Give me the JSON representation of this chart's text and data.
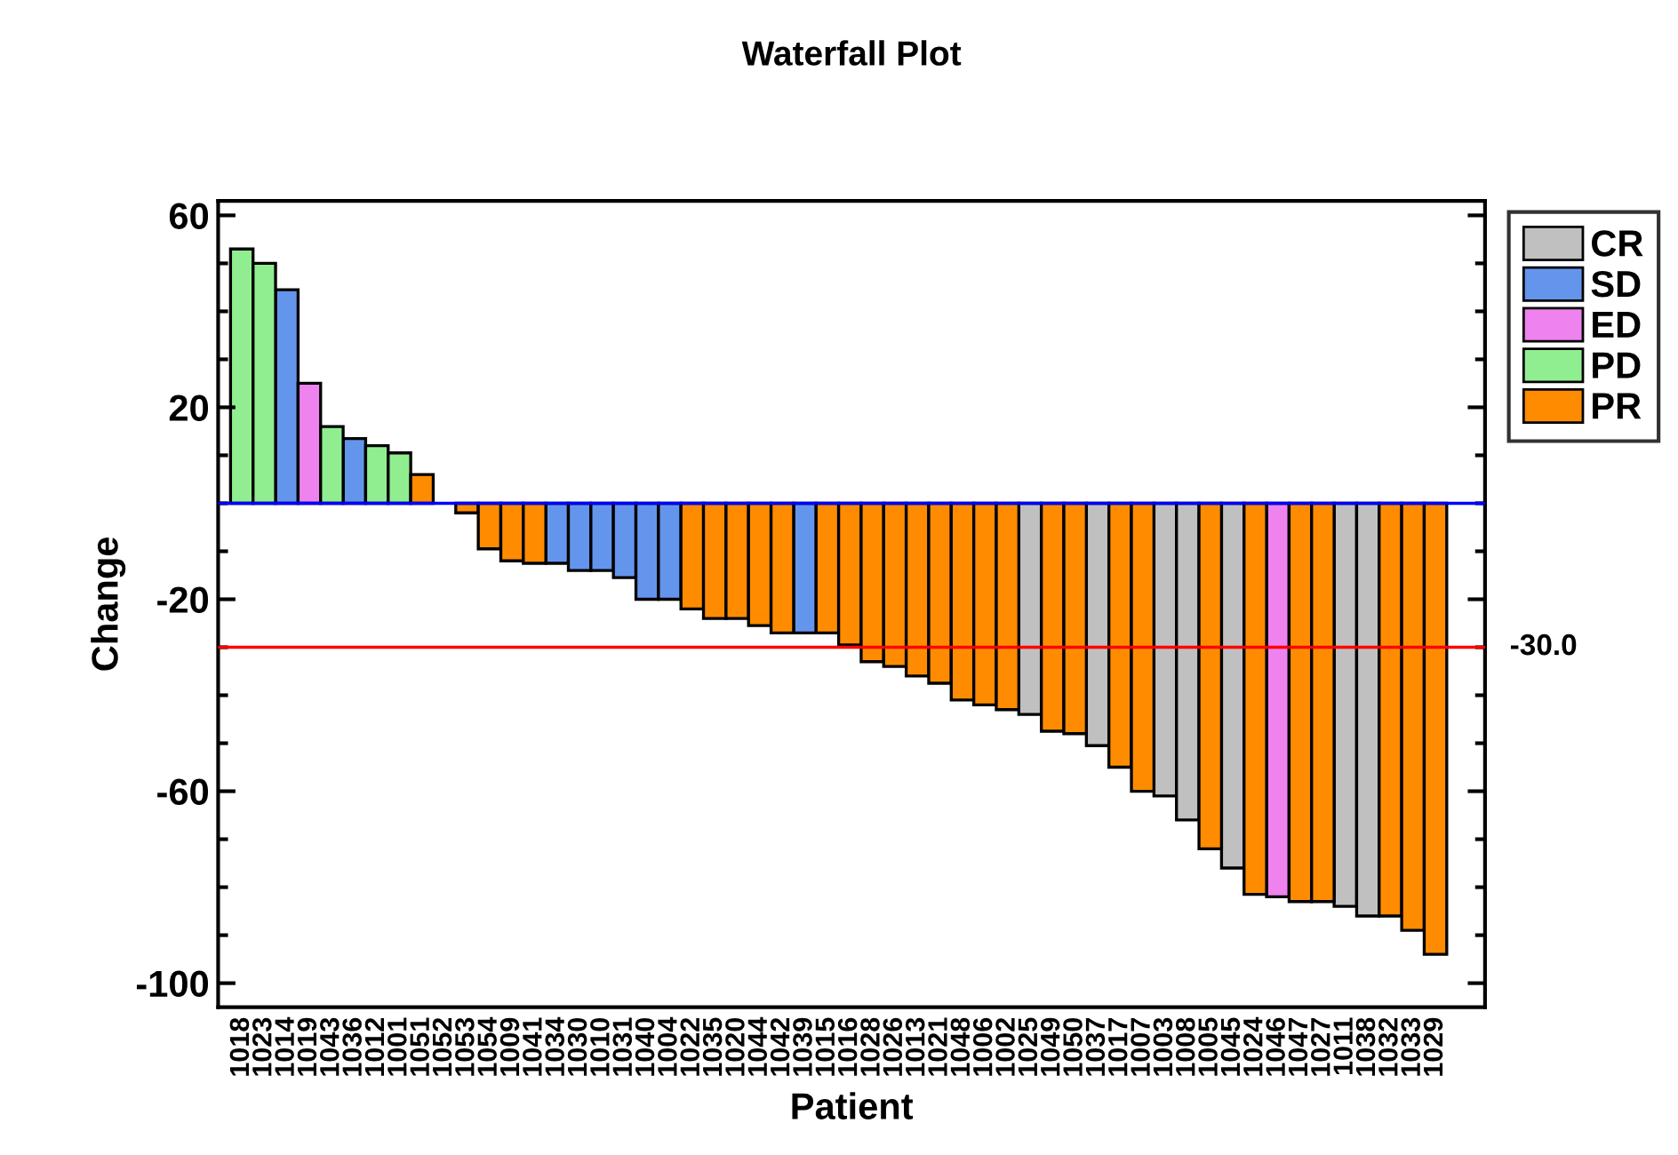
{
  "chart_data": {
    "type": "bar",
    "title": "Waterfall Plot",
    "xlabel": "Patient",
    "ylabel": "Change",
    "categories": [
      "1018",
      "1023",
      "1014",
      "1019",
      "1043",
      "1036",
      "1012",
      "1001",
      "1051",
      "1052",
      "1053",
      "1054",
      "1009",
      "1041",
      "1034",
      "1030",
      "1010",
      "1031",
      "1040",
      "1004",
      "1022",
      "1035",
      "1020",
      "1044",
      "1042",
      "1039",
      "1015",
      "1016",
      "1028",
      "1026",
      "1013",
      "1021",
      "1048",
      "1006",
      "1002",
      "1025",
      "1049",
      "1050",
      "1037",
      "1017",
      "1007",
      "1003",
      "1008",
      "1005",
      "1045",
      "1024",
      "1046",
      "1047",
      "1027",
      "1011",
      "1038",
      "1032",
      "1033",
      "1029"
    ],
    "series": [
      {
        "name": "CR",
        "color": "#c0c0c0",
        "values": [
          null,
          null,
          null,
          null,
          null,
          null,
          null,
          null,
          null,
          null,
          null,
          null,
          null,
          null,
          null,
          null,
          null,
          null,
          null,
          null,
          null,
          null,
          null,
          null,
          null,
          null,
          null,
          null,
          null,
          null,
          null,
          null,
          null,
          null,
          null,
          -44,
          null,
          null,
          -50.5,
          null,
          null,
          -61,
          -66,
          null,
          -76,
          null,
          null,
          null,
          null,
          -84,
          -86,
          null,
          null,
          null
        ]
      },
      {
        "name": "SD",
        "color": "#6495ed",
        "values": [
          null,
          null,
          44.5,
          null,
          null,
          13.5,
          null,
          null,
          null,
          null,
          null,
          null,
          null,
          null,
          -12.5,
          -14,
          -14,
          -15.5,
          -20,
          -20,
          null,
          null,
          null,
          null,
          null,
          -27,
          null,
          null,
          null,
          null,
          null,
          null,
          null,
          null,
          null,
          null,
          null,
          null,
          null,
          null,
          null,
          null,
          null,
          null,
          null,
          null,
          null,
          null,
          null,
          null,
          null,
          null,
          null,
          null
        ]
      },
      {
        "name": "ED",
        "color": "#ee82ee",
        "values": [
          null,
          null,
          null,
          25,
          null,
          null,
          null,
          null,
          null,
          null,
          null,
          null,
          null,
          null,
          null,
          null,
          null,
          null,
          null,
          null,
          null,
          null,
          null,
          null,
          null,
          null,
          null,
          null,
          null,
          null,
          null,
          null,
          null,
          null,
          null,
          null,
          null,
          null,
          null,
          null,
          null,
          null,
          null,
          null,
          null,
          null,
          -82,
          null,
          null,
          null,
          null,
          null,
          null,
          null
        ]
      },
      {
        "name": "PD",
        "color": "#90ee90",
        "values": [
          53,
          50,
          null,
          null,
          16,
          null,
          12,
          10.5,
          null,
          null,
          null,
          null,
          null,
          null,
          null,
          null,
          null,
          null,
          null,
          null,
          null,
          null,
          null,
          null,
          null,
          null,
          null,
          null,
          null,
          null,
          null,
          null,
          null,
          null,
          null,
          null,
          null,
          null,
          null,
          null,
          null,
          null,
          null,
          null,
          null,
          null,
          null,
          null,
          null,
          null,
          null,
          null,
          null,
          null
        ]
      },
      {
        "name": "PR",
        "color": "#ff8c00",
        "values": [
          null,
          null,
          null,
          null,
          null,
          null,
          null,
          null,
          6,
          null,
          -2,
          -9.5,
          -12,
          -12.5,
          null,
          null,
          null,
          null,
          null,
          null,
          -22,
          -24,
          -24,
          -25.5,
          -27,
          null,
          -27,
          -29.5,
          -33,
          -34,
          -36,
          -37.5,
          -41,
          -42,
          -43,
          null,
          -47.5,
          -48,
          null,
          -55,
          -60,
          null,
          null,
          -72,
          null,
          -81.5,
          null,
          -83,
          -83,
          null,
          null,
          -86,
          -89,
          -94
        ]
      }
    ],
    "ylim": [
      -105,
      63
    ],
    "yticks": [
      {
        "value": -100,
        "label": "-100"
      },
      {
        "value": -90,
        "label": null
      },
      {
        "value": -80,
        "label": null
      },
      {
        "value": -70,
        "label": null
      },
      {
        "value": -60,
        "label": "-60"
      },
      {
        "value": -50,
        "label": null
      },
      {
        "value": -40,
        "label": null
      },
      {
        "value": -30,
        "label": null
      },
      {
        "value": -20,
        "label": "-20"
      },
      {
        "value": -10,
        "label": null
      },
      {
        "value": 0,
        "label": null
      },
      {
        "value": 10,
        "label": null
      },
      {
        "value": 20,
        "label": "20"
      },
      {
        "value": 30,
        "label": null
      },
      {
        "value": 40,
        "label": null
      },
      {
        "value": 50,
        "label": null
      },
      {
        "value": 60,
        "label": "60"
      }
    ],
    "ref_lines": [
      {
        "axis": "y",
        "value": 0,
        "color": "#0000ff"
      },
      {
        "axis": "y",
        "value": -30,
        "label": "-30.0",
        "color": "#ff0000"
      }
    ],
    "legend": "right",
    "grid": false
  }
}
